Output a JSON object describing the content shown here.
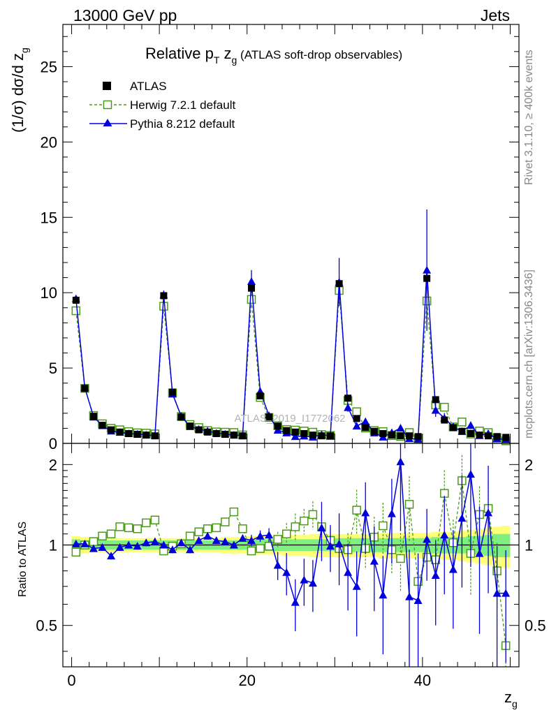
{
  "header": {
    "energy_label": "13000 GeV pp",
    "category_label": "Jets",
    "title_main": "Relative p",
    "title_sub_T": "T",
    "title_mid": " z",
    "title_sub_g": "g",
    "title_rest": " (ATLAS soft-drop observables)",
    "y_label_top": "(1/σ) dσ/d z",
    "y_label_top_sub": "g",
    "y_label_bottom": "Ratio to ATLAS",
    "x_label": "z",
    "x_label_sub": "g",
    "side_rivet": "Rivet 3.1.10, ≥ 400k events",
    "side_mcplots": "mcplots.cern.ch [arXiv:1306.3436]",
    "watermark": "ATLAS_2019_I1772062"
  },
  "legend": {
    "atlas": "ATLAS",
    "herwig": "Herwig 7.2.1 default",
    "pythia": "Pythia 8.212 default"
  },
  "colors": {
    "atlas": "#000000",
    "herwig": "#4a9a1a",
    "pythia": "#0000dd",
    "band_inner": "#7ff07f",
    "band_outer": "#ffff77"
  },
  "chart_data": [
    {
      "type": "scatter",
      "panel": "main",
      "title": "Relative pT zg (ATLAS soft-drop observables)",
      "xlabel": "zg",
      "ylabel": "(1/σ) dσ/d zg",
      "xlim": [
        -1,
        51
      ],
      "ylim": [
        0,
        27.8
      ],
      "y_ticks": [
        0,
        5,
        10,
        15,
        20,
        25
      ],
      "x_ticks": [
        0,
        20,
        40
      ],
      "x": [
        0.5,
        1.5,
        2.5,
        3.5,
        4.5,
        5.5,
        6.5,
        7.5,
        8.5,
        9.5,
        10.5,
        11.5,
        12.5,
        13.5,
        14.5,
        15.5,
        16.5,
        17.5,
        18.5,
        19.5,
        20.5,
        21.5,
        22.5,
        23.5,
        24.5,
        25.5,
        26.5,
        27.5,
        28.5,
        29.5,
        30.5,
        31.5,
        32.5,
        33.5,
        34.5,
        35.5,
        36.5,
        37.5,
        38.5,
        39.5,
        40.5,
        41.5,
        42.5,
        43.5,
        44.5,
        45.5,
        46.5,
        47.5,
        48.5,
        49.5
      ],
      "series": [
        {
          "name": "ATLAS",
          "values": [
            9.5,
            3.65,
            1.8,
            1.2,
            0.9,
            0.75,
            0.65,
            0.6,
            0.55,
            0.5,
            9.8,
            3.4,
            1.75,
            1.15,
            0.9,
            0.75,
            0.65,
            0.6,
            0.55,
            0.5,
            10.3,
            3.15,
            1.75,
            1.15,
            0.85,
            0.75,
            0.65,
            0.55,
            0.5,
            0.5,
            10.6,
            3.0,
            1.65,
            1.05,
            0.8,
            0.65,
            0.55,
            0.5,
            0.5,
            0.45,
            10.95,
            2.9,
            1.55,
            1.05,
            0.8,
            0.65,
            0.55,
            0.5,
            0.45,
            0.4
          ]
        },
        {
          "name": "Herwig 7.2.1 default",
          "values": [
            8.8,
            3.65,
            1.85,
            1.3,
            1.0,
            0.9,
            0.78,
            0.7,
            0.68,
            0.63,
            9.1,
            3.35,
            1.78,
            1.25,
            1.05,
            0.85,
            0.76,
            0.74,
            0.72,
            0.56,
            9.55,
            3.05,
            1.72,
            1.18,
            0.92,
            0.88,
            0.82,
            0.74,
            0.58,
            0.52,
            10.15,
            2.85,
            2.1,
            1.02,
            0.85,
            0.78,
            0.52,
            0.46,
            0.72,
            0.33,
            9.45,
            2.55,
            2.4,
            1.09,
            1.42,
            0.62,
            0.82,
            0.72,
            0.37,
            0.17
          ]
        },
        {
          "name": "Pythia 8.212 default",
          "values": [
            9.6,
            3.7,
            1.75,
            1.18,
            0.82,
            0.74,
            0.65,
            0.62,
            0.56,
            0.52,
            9.85,
            3.28,
            1.8,
            1.12,
            0.94,
            0.82,
            0.68,
            0.62,
            0.55,
            0.54,
            10.75,
            3.45,
            1.85,
            0.88,
            0.7,
            0.46,
            0.49,
            0.42,
            0.58,
            0.5,
            10.7,
            2.38,
            1.15,
            1.45,
            0.7,
            0.42,
            0.72,
            1.02,
            0.32,
            0.28,
            11.5,
            2.2,
            1.68,
            1.1,
            0.8,
            1.2,
            0.52,
            0.66,
            0.3,
            0.27
          ]
        }
      ]
    },
    {
      "type": "scatter",
      "panel": "ratio",
      "ylabel": "Ratio to ATLAS",
      "xlabel": "zg",
      "xlim": [
        -1,
        51
      ],
      "ylim": [
        0.35,
        2.4
      ],
      "y_ticks": [
        0.5,
        1,
        2
      ],
      "x_ticks": [
        0,
        20,
        40
      ],
      "x": [
        0.5,
        1.5,
        2.5,
        3.5,
        4.5,
        5.5,
        6.5,
        7.5,
        8.5,
        9.5,
        10.5,
        11.5,
        12.5,
        13.5,
        14.5,
        15.5,
        16.5,
        17.5,
        18.5,
        19.5,
        20.5,
        21.5,
        22.5,
        23.5,
        24.5,
        25.5,
        26.5,
        27.5,
        28.5,
        29.5,
        30.5,
        31.5,
        32.5,
        33.5,
        34.5,
        35.5,
        36.5,
        37.5,
        38.5,
        39.5,
        40.5,
        41.5,
        42.5,
        43.5,
        44.5,
        45.5,
        46.5,
        47.5,
        48.5,
        49.5
      ],
      "series": [
        {
          "name": "Herwig 7.2.1 default",
          "values": [
            0.94,
            1.0,
            1.03,
            1.08,
            1.1,
            1.17,
            1.16,
            1.15,
            1.21,
            1.24,
            0.95,
            0.99,
            1.01,
            1.08,
            1.12,
            1.15,
            1.16,
            1.22,
            1.33,
            1.15,
            0.95,
            0.97,
            0.99,
            1.05,
            1.1,
            1.17,
            1.23,
            1.3,
            1.17,
            1.04,
            0.97,
            0.96,
            1.35,
            0.97,
            1.07,
            1.18,
            0.96,
            0.89,
            1.42,
            0.73,
            0.9,
            0.88,
            1.56,
            1.02,
            1.74,
            0.93,
            1.3,
            1.37,
            0.8,
            0.42
          ]
        },
        {
          "name": "Pythia 8.212 default",
          "values": [
            1.01,
            1.01,
            0.97,
            0.98,
            0.91,
            0.98,
            1.0,
            0.99,
            1.02,
            1.03,
            1.0,
            0.96,
            1.02,
            0.96,
            1.04,
            1.08,
            1.04,
            1.03,
            1.0,
            1.06,
            1.04,
            1.08,
            1.09,
            0.84,
            0.79,
            0.61,
            0.74,
            0.72,
            1.16,
            0.99,
            1.01,
            0.79,
            0.7,
            1.32,
            0.87,
            0.65,
            1.31,
            2.05,
            0.64,
            0.62,
            1.05,
            0.77,
            1.09,
            0.81,
            1.26,
            1.84,
            0.93,
            1.32,
            0.66,
            0.66
          ]
        }
      ],
      "band_inner": [
        0.05,
        0.04,
        0.04,
        0.04,
        0.04,
        0.04,
        0.04,
        0.04,
        0.04,
        0.04,
        0.04,
        0.04,
        0.04,
        0.04,
        0.04,
        0.04,
        0.04,
        0.04,
        0.04,
        0.04,
        0.05,
        0.05,
        0.05,
        0.05,
        0.05,
        0.05,
        0.05,
        0.05,
        0.05,
        0.05,
        0.06,
        0.06,
        0.06,
        0.06,
        0.06,
        0.06,
        0.06,
        0.06,
        0.06,
        0.06,
        0.06,
        0.07,
        0.07,
        0.07,
        0.07,
        0.08,
        0.08,
        0.09,
        0.1,
        0.1
      ],
      "band_outer": [
        0.08,
        0.07,
        0.06,
        0.06,
        0.06,
        0.06,
        0.06,
        0.06,
        0.06,
        0.06,
        0.06,
        0.06,
        0.06,
        0.06,
        0.06,
        0.06,
        0.06,
        0.07,
        0.07,
        0.07,
        0.08,
        0.08,
        0.08,
        0.08,
        0.09,
        0.09,
        0.09,
        0.1,
        0.1,
        0.1,
        0.1,
        0.1,
        0.1,
        0.1,
        0.1,
        0.11,
        0.11,
        0.11,
        0.11,
        0.11,
        0.11,
        0.12,
        0.12,
        0.12,
        0.13,
        0.14,
        0.15,
        0.16,
        0.17,
        0.18
      ]
    }
  ]
}
